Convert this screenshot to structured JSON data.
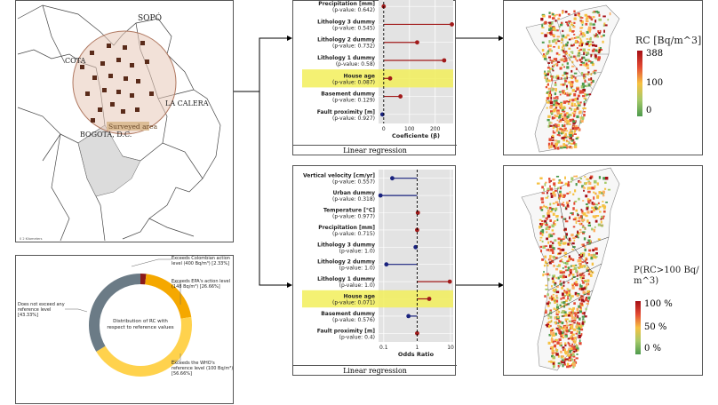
{
  "map": {
    "places": [
      "SOPÓ",
      "COTA",
      "LA CALERA",
      "BOGOTÁ, D.C."
    ],
    "surveyed_area": "Surveyed area",
    "scale_text": "0          2 Kilometers"
  },
  "donut": {
    "center_text": "Distribution of RC with respect to reference values",
    "legend": [
      {
        "text": "Exceeds Colombian action level (400 Bq/m³) [2.33%]",
        "color": "#8b1a1a",
        "value": 2.33
      },
      {
        "text": "Exceeds EPA's action level (148 Bq/m³) [26.66%]",
        "color": "#f5a800",
        "value": 26.66
      },
      {
        "text": "Exceeds the WHO's reference level (100 Bq/m³) [56.66%]",
        "color": "#ffd24d",
        "value": 56.66
      },
      {
        "text": "Does not exceed any reference level [43.33%]",
        "color": "#6b7b86",
        "value": 43.33
      }
    ]
  },
  "chart_data": [
    {
      "type": "scatter",
      "title": "",
      "caption": "Linear regression",
      "xlabel": "Coeficiente (β)",
      "xticks": [
        "0",
        "100",
        "200"
      ],
      "xlim": [
        -20,
        270
      ],
      "categories": [
        "Precipitation [mm] (p-value: 0.642)",
        "Lithology 3 dummy (p-value: 0.545)",
        "Lithology 2 dummy (p-value: 0.732)",
        "Lithology 1 dummy (p-value: 0.58)",
        "House age (p-value: 0.087)",
        "Basement dummy (p-value: 0.129)",
        "Fault proximity [m] (p-value: 0.927)"
      ],
      "values": [
        0,
        265,
        130,
        235,
        25,
        65,
        -5
      ],
      "highlight": "House age (p-value: 0.087)"
    },
    {
      "type": "scatter",
      "title": "",
      "caption": "Linear regression",
      "xlabel": "Odds Ratio",
      "xticks": [
        "0.1",
        "1",
        "10"
      ],
      "xscale": "log",
      "xlim": [
        0.07,
        12
      ],
      "categories": [
        "Vertical velocity [cm/yr] (p-value: 0.557)",
        "Urban dummy (p-value: 0.318)",
        "Temperature [°C] (p-value: 0.977)",
        "Precipitation [mm] (p-value: 0.715)",
        "Lithology 3 dummy (p-value: 1.0)",
        "Lithology 2 dummy (p-value: 1.0)",
        "Lithology 1 dummy (p-value: 1.0)",
        "House age (p-value: 0.071)",
        "Basement dummy (p-value: 0.576)",
        "Fault proximity [m] (p-value: 0.4)"
      ],
      "values": [
        0.18,
        0.08,
        1.05,
        1.0,
        0.9,
        0.12,
        9.5,
        2.3,
        0.55,
        1.0
      ],
      "highlight": "House age (p-value: 0.071)"
    }
  ],
  "legend_top": {
    "title": "RC [Bq/m^3]",
    "ticks": [
      "388",
      "100",
      "0"
    ]
  },
  "legend_bottom": {
    "title": "P(RC>100 Bq/ m^3)",
    "ticks": [
      "100 %",
      "50 %",
      "0 %"
    ]
  }
}
